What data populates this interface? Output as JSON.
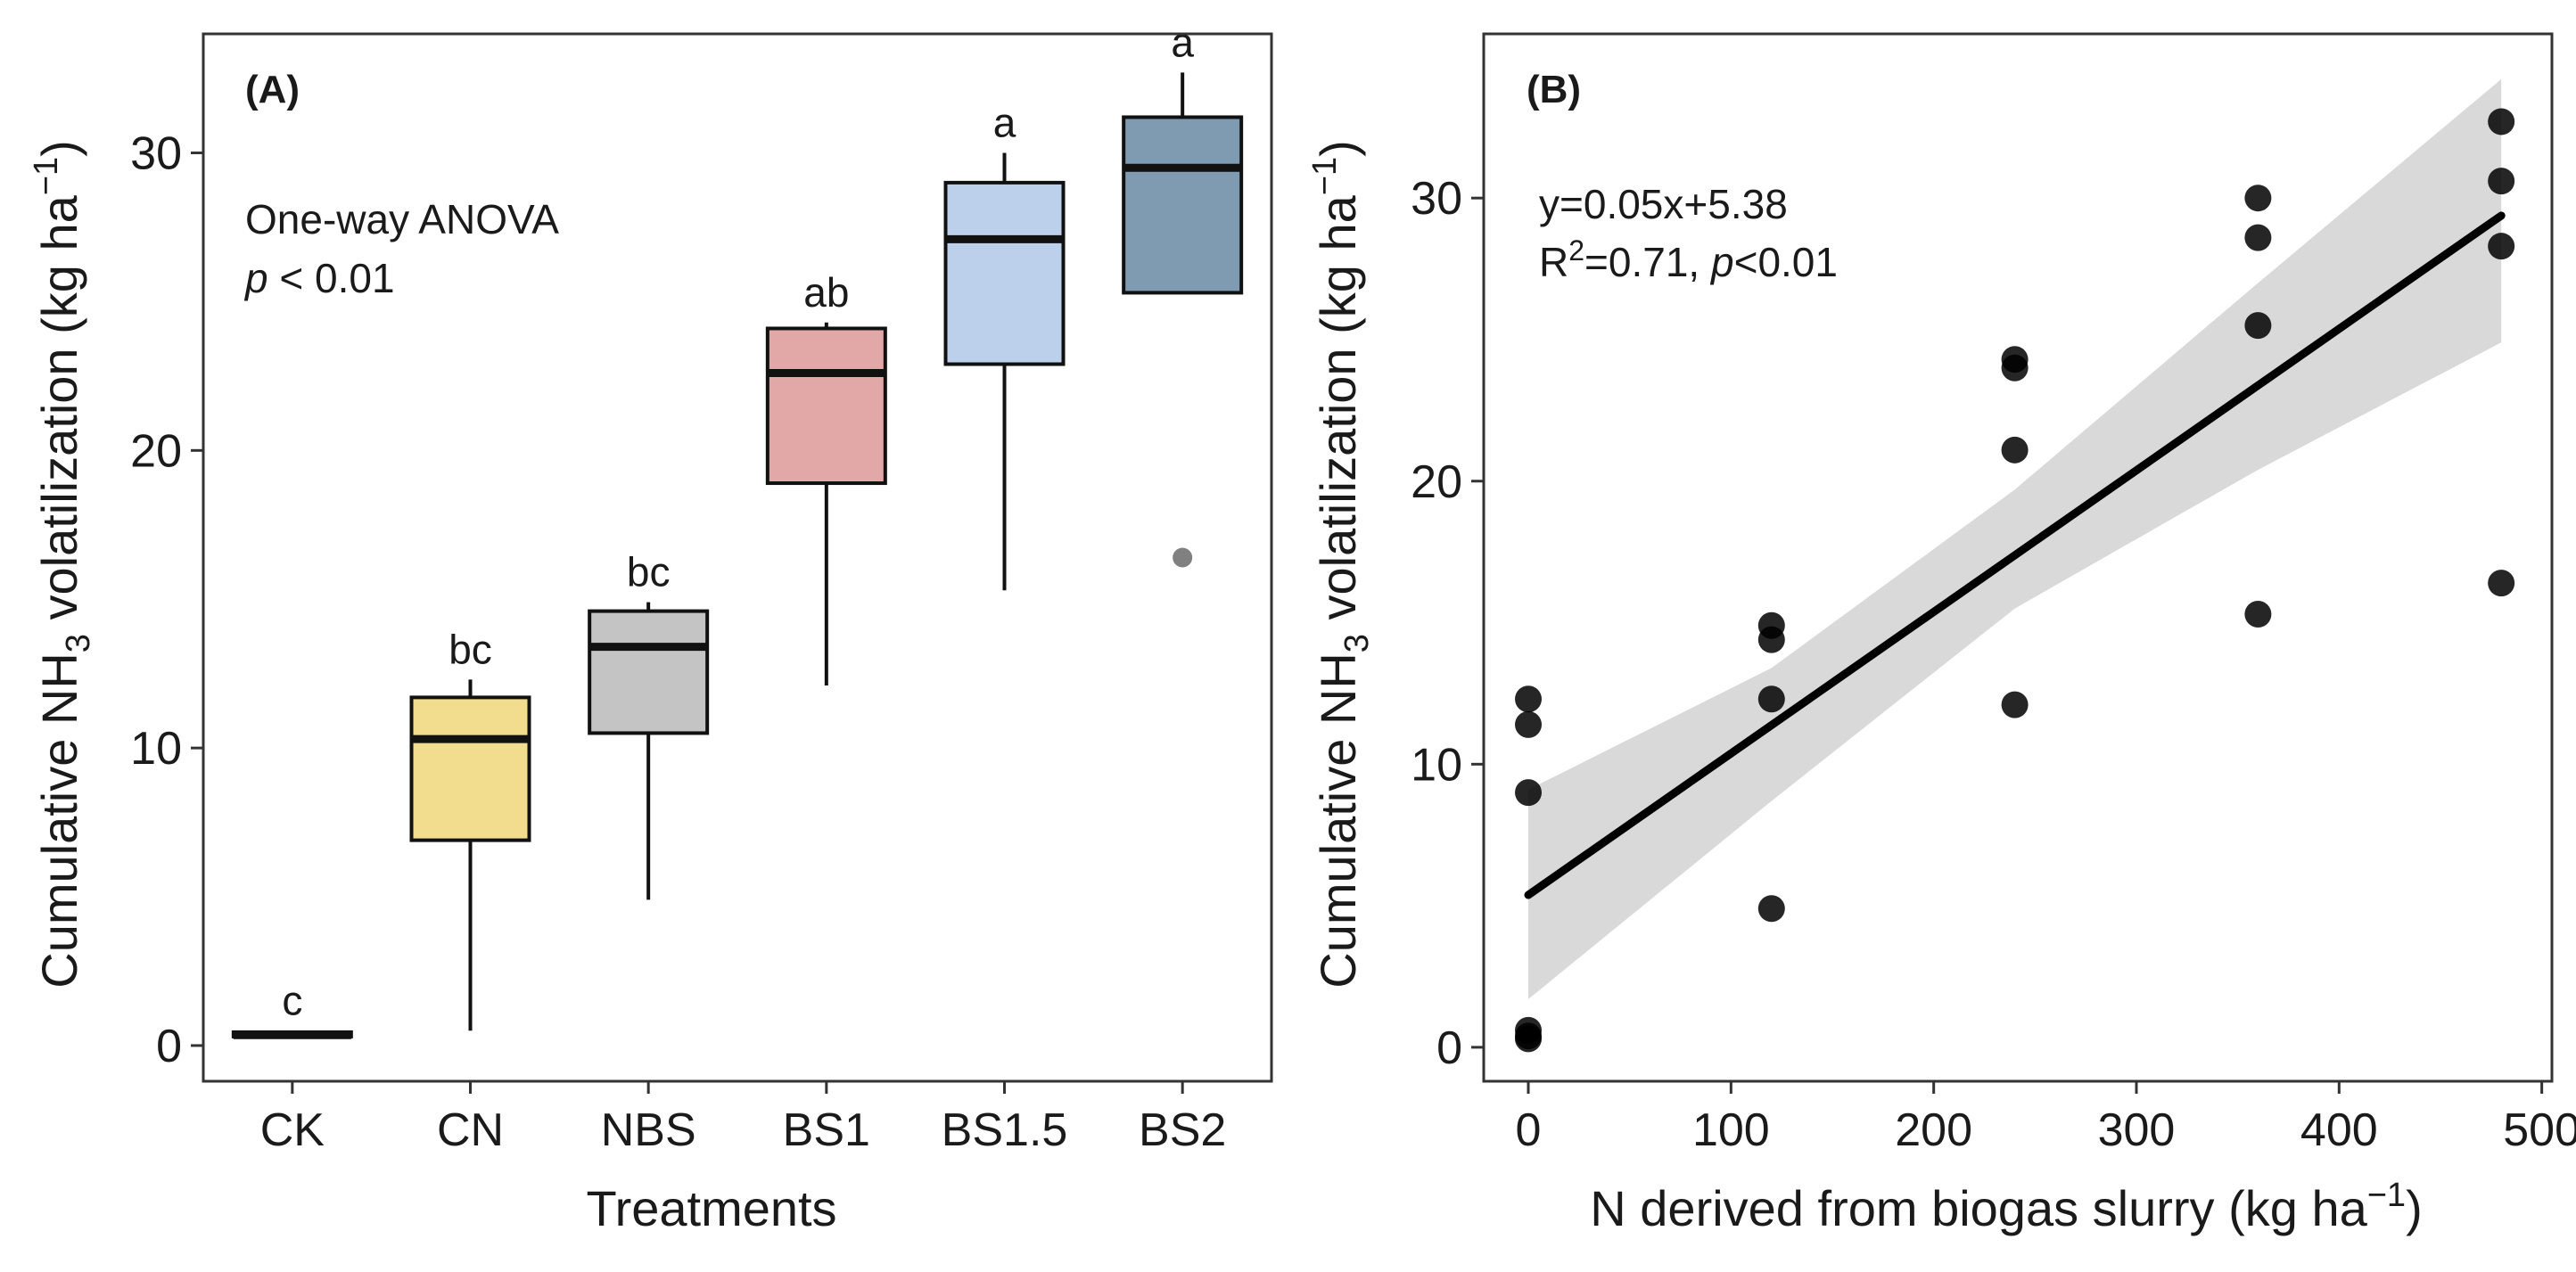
{
  "chart_data": [
    {
      "panel": "(A)",
      "type": "box",
      "xlabel": "Treatments",
      "ylabel": "Cumulative NH3 volatilization (kg ha−1)",
      "ylabel_parts": {
        "pre": "Cumulative NH",
        "sub": "3",
        "mid": " volatilization (kg ha",
        "sup": "−1",
        "post": ")"
      },
      "ylim": [
        -1.2,
        34
      ],
      "yticks": [
        "0",
        "10",
        "20",
        "30"
      ],
      "annotation": {
        "line1": "One-way ANOVA",
        "p_italic": "p",
        "p_rest": " < 0.01"
      },
      "categories": [
        "CK",
        "CN",
        "NBS",
        "BS1",
        "BS1.5",
        "BS2"
      ],
      "boxes": [
        {
          "name": "CK",
          "min": 0.3,
          "q1": 0.3,
          "median": 0.35,
          "q3": 0.45,
          "max": 0.5,
          "outliers": [],
          "color": "#4d4d4d",
          "letter": "c"
        },
        {
          "name": "CN",
          "min": 0.5,
          "q1": 6.9,
          "median": 10.3,
          "q3": 11.7,
          "max": 12.3,
          "outliers": [],
          "color": "#f2dc8e",
          "letter": "bc"
        },
        {
          "name": "NBS",
          "min": 4.9,
          "q1": 10.5,
          "median": 13.4,
          "q3": 14.6,
          "max": 14.9,
          "outliers": [],
          "color": "#c4c4c4",
          "letter": "bc"
        },
        {
          "name": "BS1",
          "min": 12.1,
          "q1": 18.9,
          "median": 22.6,
          "q3": 24.1,
          "max": 24.3,
          "outliers": [],
          "color": "#e2a7a7",
          "letter": "ab"
        },
        {
          "name": "BS1.5",
          "min": 15.3,
          "q1": 22.9,
          "median": 27.1,
          "q3": 29.0,
          "max": 30.0,
          "outliers": [],
          "color": "#bcd0ec",
          "letter": "a"
        },
        {
          "name": "BS2",
          "min": 25.3,
          "q1": 25.3,
          "median": 29.5,
          "q3": 31.2,
          "max": 32.7,
          "outliers": [
            16.4
          ],
          "color": "#7f9bb1",
          "letter": "a"
        }
      ]
    },
    {
      "panel": "(B)",
      "type": "scatter",
      "xlabel": "N derived from biogas slurry (kg ha−1)",
      "xlabel_parts": {
        "pre": "N derived from biogas slurry (kg ha",
        "sup": "−1",
        "post": ")"
      },
      "ylabel": "Cumulative NH3 volatilization (kg ha−1)",
      "ylabel_parts": {
        "pre": "Cumulative NH",
        "sub": "3",
        "mid": " volatilization (kg ha",
        "sup": "−1",
        "post": ")"
      },
      "xlim": [
        -22,
        505
      ],
      "ylim": [
        -1.2,
        35.8
      ],
      "xticks": [
        "0",
        "100",
        "200",
        "300",
        "400",
        "500"
      ],
      "yticks": [
        "0",
        "10",
        "20",
        "30"
      ],
      "equation": "y=0.05x+5.38",
      "r2": {
        "r": "R",
        "sup": "2",
        "value": "=0.71, ",
        "p_italic": "p",
        "p_rest": "<0.01"
      },
      "points": [
        {
          "x": 0,
          "y": 12.3
        },
        {
          "x": 0,
          "y": 11.4
        },
        {
          "x": 0,
          "y": 9.0
        },
        {
          "x": 0,
          "y": 0.6
        },
        {
          "x": 0,
          "y": 0.3
        },
        {
          "x": 0,
          "y": 0.4
        },
        {
          "x": 120,
          "y": 14.9
        },
        {
          "x": 120,
          "y": 14.4
        },
        {
          "x": 120,
          "y": 12.3
        },
        {
          "x": 120,
          "y": 4.9
        },
        {
          "x": 240,
          "y": 24.3
        },
        {
          "x": 240,
          "y": 24.0
        },
        {
          "x": 240,
          "y": 21.1
        },
        {
          "x": 240,
          "y": 12.1
        },
        {
          "x": 360,
          "y": 30.0
        },
        {
          "x": 360,
          "y": 28.6
        },
        {
          "x": 360,
          "y": 25.5
        },
        {
          "x": 360,
          "y": 15.3
        },
        {
          "x": 480,
          "y": 32.7
        },
        {
          "x": 480,
          "y": 30.6
        },
        {
          "x": 480,
          "y": 28.3
        },
        {
          "x": 480,
          "y": 16.4
        }
      ],
      "fit": {
        "slope": 0.05,
        "intercept": 5.38,
        "x_range": [
          0,
          480
        ]
      },
      "confidence_band": [
        {
          "x": 0,
          "lo": 1.7,
          "hi": 9.1
        },
        {
          "x": 120,
          "lo": 8.7,
          "hi": 13.4
        },
        {
          "x": 240,
          "lo": 15.5,
          "hi": 19.7
        },
        {
          "x": 360,
          "lo": 20.4,
          "hi": 27.0
        },
        {
          "x": 480,
          "lo": 24.9,
          "hi": 34.2
        }
      ]
    }
  ]
}
